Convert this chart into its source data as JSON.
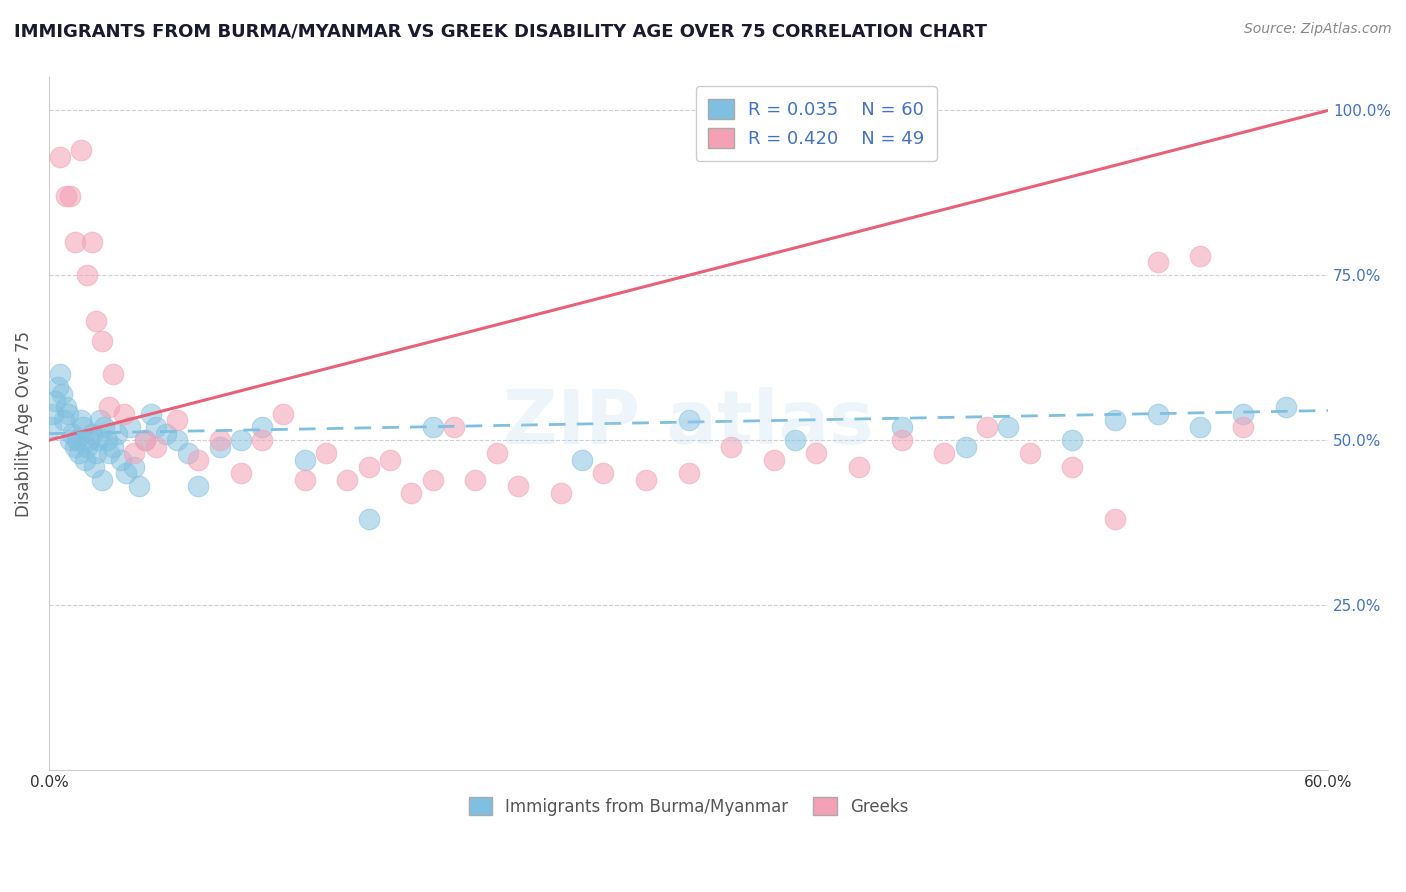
{
  "title": "IMMIGRANTS FROM BURMA/MYANMAR VS GREEK DISABILITY AGE OVER 75 CORRELATION CHART",
  "source": "Source: ZipAtlas.com",
  "ylabel": "Disability Age Over 75",
  "legend_label1": "Immigrants from Burma/Myanmar",
  "legend_label2": "Greeks",
  "R1": 0.035,
  "N1": 60,
  "R2": 0.42,
  "N2": 49,
  "xlim": [
    0.0,
    0.6
  ],
  "ylim": [
    0.0,
    1.05
  ],
  "ytick_vals": [
    0.0,
    0.25,
    0.5,
    0.75,
    1.0
  ],
  "color_blue": "#7fbfdf",
  "color_pink": "#f4a0b5",
  "color_blue_line": "#7fbfdf",
  "color_pink_line": "#e8607a",
  "pink_trend_x0": 0.0,
  "pink_trend_y0": 0.5,
  "pink_trend_x1": 0.6,
  "pink_trend_y1": 1.0,
  "blue_trend_x0": 0.0,
  "blue_trend_y0": 0.51,
  "blue_trend_x1": 0.6,
  "blue_trend_y1": 0.545,
  "blue_x": [
    0.001,
    0.002,
    0.003,
    0.004,
    0.005,
    0.006,
    0.007,
    0.008,
    0.009,
    0.01,
    0.011,
    0.012,
    0.013,
    0.014,
    0.015,
    0.016,
    0.017,
    0.018,
    0.019,
    0.02,
    0.021,
    0.022,
    0.023,
    0.024,
    0.025,
    0.026,
    0.027,
    0.028,
    0.03,
    0.032,
    0.034,
    0.036,
    0.038,
    0.04,
    0.042,
    0.045,
    0.048,
    0.05,
    0.055,
    0.06,
    0.065,
    0.07,
    0.08,
    0.09,
    0.1,
    0.12,
    0.15,
    0.18,
    0.25,
    0.3,
    0.35,
    0.4,
    0.43,
    0.45,
    0.48,
    0.5,
    0.52,
    0.54,
    0.56,
    0.58
  ],
  "blue_y": [
    0.52,
    0.54,
    0.56,
    0.58,
    0.6,
    0.57,
    0.53,
    0.55,
    0.54,
    0.5,
    0.51,
    0.49,
    0.5,
    0.48,
    0.53,
    0.52,
    0.47,
    0.49,
    0.5,
    0.51,
    0.46,
    0.48,
    0.5,
    0.53,
    0.44,
    0.52,
    0.5,
    0.48,
    0.49,
    0.51,
    0.47,
    0.45,
    0.52,
    0.46,
    0.43,
    0.5,
    0.54,
    0.52,
    0.51,
    0.5,
    0.48,
    0.43,
    0.49,
    0.5,
    0.52,
    0.47,
    0.38,
    0.52,
    0.47,
    0.53,
    0.5,
    0.52,
    0.49,
    0.52,
    0.5,
    0.53,
    0.54,
    0.52,
    0.54,
    0.55
  ],
  "pink_x": [
    0.005,
    0.008,
    0.01,
    0.012,
    0.015,
    0.018,
    0.02,
    0.022,
    0.025,
    0.028,
    0.03,
    0.035,
    0.04,
    0.045,
    0.05,
    0.06,
    0.07,
    0.08,
    0.09,
    0.1,
    0.11,
    0.12,
    0.13,
    0.14,
    0.15,
    0.16,
    0.17,
    0.18,
    0.19,
    0.2,
    0.21,
    0.22,
    0.24,
    0.26,
    0.28,
    0.3,
    0.32,
    0.34,
    0.36,
    0.38,
    0.4,
    0.42,
    0.44,
    0.46,
    0.48,
    0.5,
    0.52,
    0.54,
    0.56
  ],
  "pink_y": [
    0.93,
    0.87,
    0.87,
    0.8,
    0.94,
    0.75,
    0.8,
    0.68,
    0.65,
    0.55,
    0.6,
    0.54,
    0.48,
    0.5,
    0.49,
    0.53,
    0.47,
    0.5,
    0.45,
    0.5,
    0.54,
    0.44,
    0.48,
    0.44,
    0.46,
    0.47,
    0.42,
    0.44,
    0.52,
    0.44,
    0.48,
    0.43,
    0.42,
    0.45,
    0.44,
    0.45,
    0.49,
    0.47,
    0.48,
    0.46,
    0.5,
    0.48,
    0.52,
    0.48,
    0.46,
    0.38,
    0.77,
    0.78,
    0.52
  ]
}
